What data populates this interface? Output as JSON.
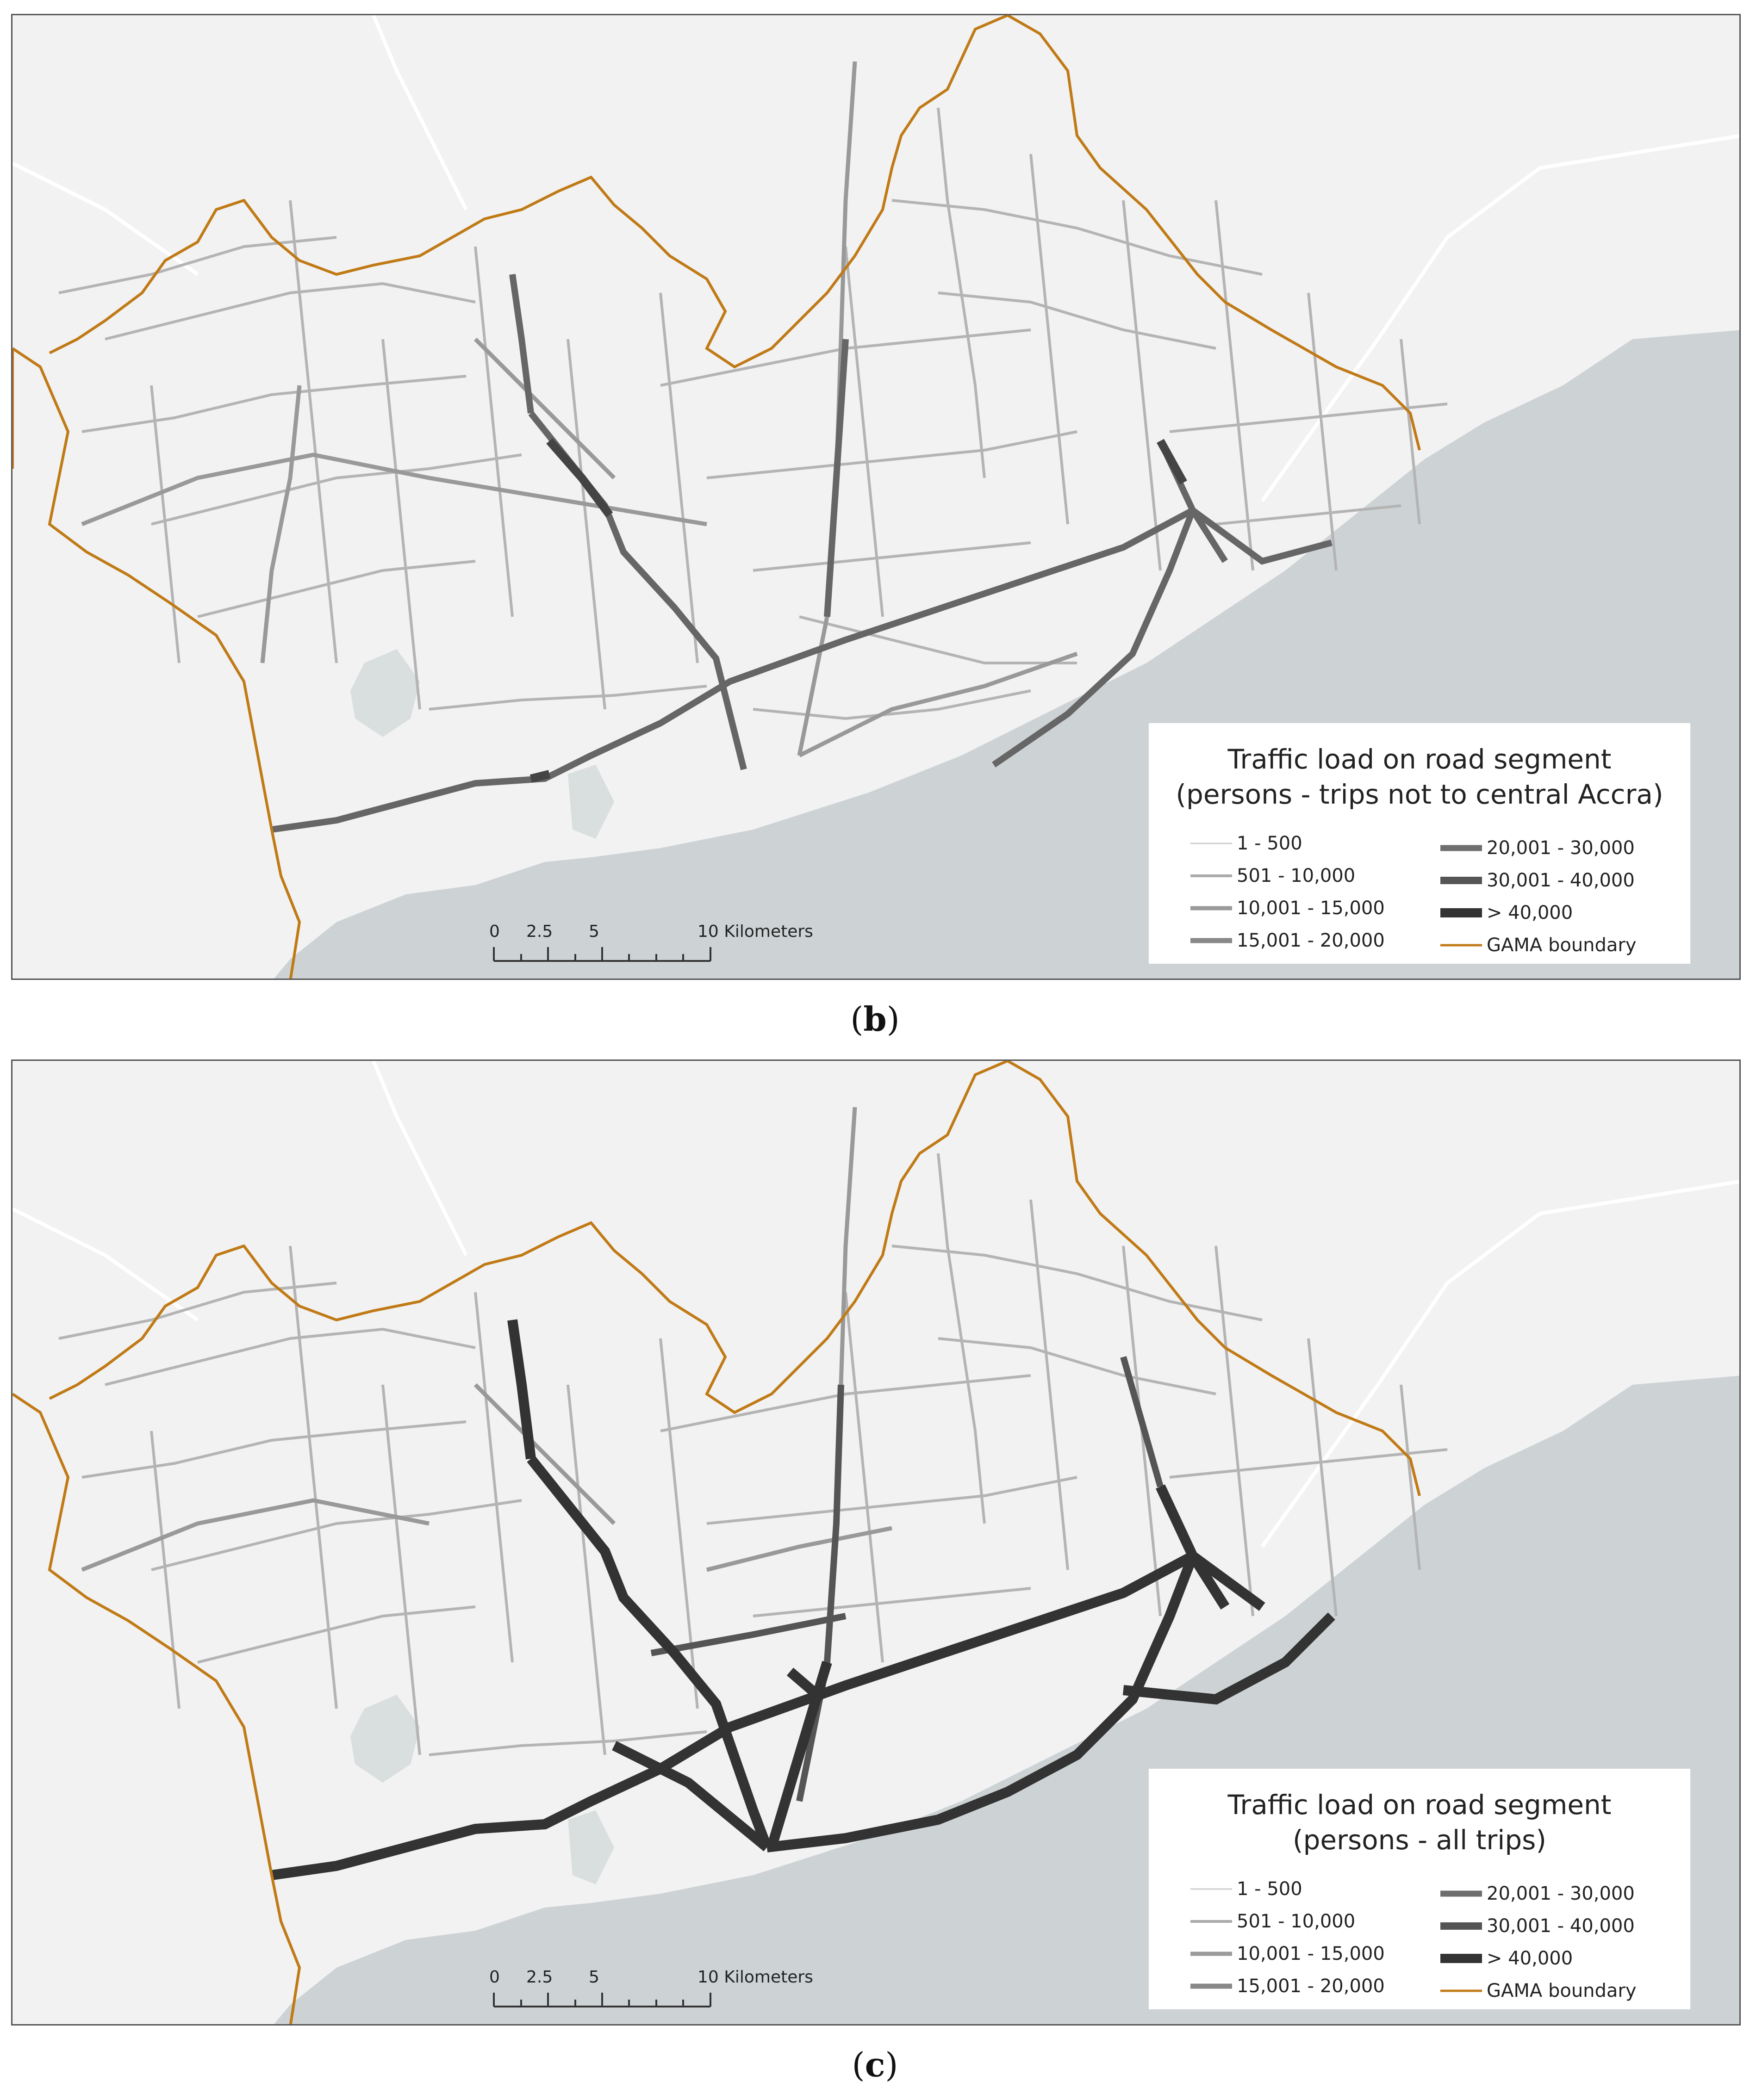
{
  "panels": [
    {
      "id": "b",
      "caption_letter": "b",
      "legend": {
        "title_line1": "Traffic load on road segment",
        "title_line2": "(persons - trips not to central Accra)",
        "classes_left": [
          "1 - 500",
          "501 - 10,000",
          "10,001 - 15,000",
          "15,001 - 20,000"
        ],
        "classes_right": [
          "20,001 - 30,000",
          "30,001 - 40,000",
          "> 40,000",
          "GAMA boundary"
        ]
      },
      "scale": {
        "labels": [
          "0",
          "2.5",
          "5",
          "10 Kilometers"
        ]
      }
    },
    {
      "id": "c",
      "caption_letter": "c",
      "legend": {
        "title_line1": "Traffic load on road segment",
        "title_line2": "(persons - all trips)",
        "classes_left": [
          "1 - 500",
          "501 - 10,000",
          "10,001 - 15,000",
          "15,001 - 20,000"
        ],
        "classes_right": [
          "20,001 - 30,000",
          "30,001 - 40,000",
          "> 40,000",
          "GAMA boundary"
        ]
      },
      "scale": {
        "labels": [
          "0",
          "2.5",
          "5",
          "10 Kilometers"
        ]
      }
    }
  ],
  "colors": {
    "land": "#f2f2f2",
    "sea": "#cdd3d5",
    "boundary": "#c07a16",
    "road_light": "#aaaaaa",
    "road_medium": "#8a8a8a",
    "road_dark": "#555555",
    "road_heavy": "#333333"
  }
}
